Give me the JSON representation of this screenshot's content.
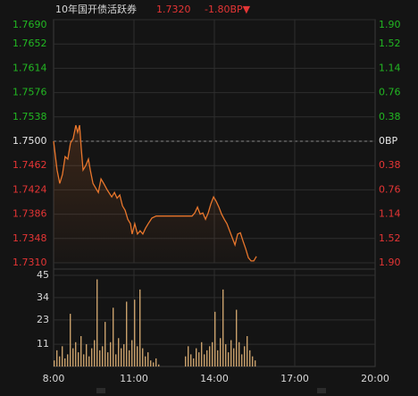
{
  "chart_data": [
    {
      "type": "line",
      "title": "10年国开债活跃券",
      "last_price": "1.7320",
      "change": "-1.80BP▼",
      "x": [
        8.0,
        8.13,
        8.23,
        8.33,
        8.43,
        8.53,
        8.63,
        8.73,
        8.83,
        8.9,
        8.97,
        9.03,
        9.1,
        9.2,
        9.3,
        9.37,
        9.47,
        9.57,
        9.67,
        9.77,
        9.87,
        10.0,
        10.17,
        10.27,
        10.37,
        10.47,
        10.57,
        10.67,
        10.77,
        10.87,
        10.93,
        11.03,
        11.13,
        11.23,
        11.33,
        11.43,
        11.53,
        11.67,
        11.83,
        13.17,
        13.27,
        13.37,
        13.47,
        13.57,
        13.67,
        13.77,
        13.87,
        13.97,
        14.07,
        14.17,
        14.27,
        14.37,
        14.47,
        14.57,
        14.67,
        14.77,
        14.87,
        14.97,
        15.07,
        15.17,
        15.27,
        15.37,
        15.47,
        15.57
      ],
      "series": [
        {
          "color": "#e8762c",
          "values": [
            1.75,
            1.7455,
            1.7434,
            1.7448,
            1.7476,
            1.7472,
            1.7497,
            1.7504,
            1.7525,
            1.7514,
            1.7525,
            1.749,
            1.7455,
            1.7462,
            1.7472,
            1.7455,
            1.7434,
            1.7427,
            1.742,
            1.7441,
            1.7434,
            1.7424,
            1.7413,
            1.742,
            1.7411,
            1.7416,
            1.7399,
            1.7392,
            1.7378,
            1.7371,
            1.7355,
            1.7371,
            1.7355,
            1.736,
            1.7355,
            1.7364,
            1.7371,
            1.738,
            1.7383,
            1.7383,
            1.7388,
            1.7397,
            1.7386,
            1.7388,
            1.7378,
            1.7388,
            1.7402,
            1.7413,
            1.7406,
            1.7397,
            1.7386,
            1.7378,
            1.7371,
            1.736,
            1.7349,
            1.7338,
            1.7355,
            1.7357,
            1.7344,
            1.7332,
            1.7318,
            1.7313,
            1.7313,
            1.732
          ]
        }
      ],
      "xlim": [
        8,
        20
      ],
      "ylim": [
        1.731,
        1.769
      ],
      "yticks": [
        {
          "value": 1.769,
          "label": "1.7690"
        },
        {
          "value": 1.7652,
          "label": "1.7652"
        },
        {
          "value": 1.7614,
          "label": "1.7614"
        },
        {
          "value": 1.7576,
          "label": "1.7576"
        },
        {
          "value": 1.7538,
          "label": "1.7538"
        },
        {
          "value": 1.75,
          "label": "1.7500"
        },
        {
          "value": 1.7462,
          "label": "1.7462"
        },
        {
          "value": 1.7424,
          "label": "1.7424"
        },
        {
          "value": 1.7386,
          "label": "1.7386"
        },
        {
          "value": 1.7348,
          "label": "1.7348"
        },
        {
          "value": 1.731,
          "label": "1.7310"
        }
      ],
      "y2lim": [
        -1.9,
        1.9
      ],
      "y2ticks": [
        {
          "value": 1.9,
          "label": "1.90"
        },
        {
          "value": 1.52,
          "label": "1.52"
        },
        {
          "value": 1.14,
          "label": "1.14"
        },
        {
          "value": 0.76,
          "label": "0.76"
        },
        {
          "value": 0.38,
          "label": "0.38"
        },
        {
          "value": 0,
          "label": "0BP"
        },
        {
          "value": -0.38,
          "label": "0.38"
        },
        {
          "value": -0.76,
          "label": "0.76"
        },
        {
          "value": -1.14,
          "label": "1.14"
        },
        {
          "value": -1.52,
          "label": "1.52"
        },
        {
          "value": -1.9,
          "label": "1.90"
        }
      ],
      "reference_line": 1.75,
      "up_color": "#22b822",
      "down_color": "#e53535",
      "flat_color": "#e6e6e6",
      "grid": true
    },
    {
      "type": "bar",
      "color": "#c9a06c",
      "x": [
        8.0,
        8.1,
        8.2,
        8.3,
        8.4,
        8.5,
        8.6,
        8.7,
        8.8,
        8.9,
        9.0,
        9.1,
        9.2,
        9.3,
        9.4,
        9.5,
        9.6,
        9.7,
        9.8,
        9.9,
        10.0,
        10.1,
        10.2,
        10.3,
        10.4,
        10.5,
        10.6,
        10.7,
        10.8,
        10.9,
        11.0,
        11.1,
        11.2,
        11.3,
        11.4,
        11.5,
        11.6,
        11.7,
        11.8,
        11.9,
        12.9,
        13.0,
        13.1,
        13.2,
        13.3,
        13.4,
        13.5,
        13.6,
        13.7,
        13.8,
        13.9,
        14.0,
        14.1,
        14.2,
        14.3,
        14.4,
        14.5,
        14.6,
        14.7,
        14.8,
        14.9,
        15.0,
        15.1,
        15.2,
        15.3,
        15.4,
        15.5
      ],
      "values": [
        3,
        8,
        5,
        10,
        4,
        6,
        26,
        9,
        12,
        7,
        15,
        6,
        11,
        5,
        9,
        13,
        43,
        8,
        10,
        22,
        7,
        12,
        29,
        6,
        14,
        9,
        11,
        32,
        8,
        13,
        33,
        10,
        38,
        9,
        5,
        7,
        3,
        2,
        4,
        1,
        5,
        10,
        6,
        4,
        9,
        7,
        12,
        6,
        8,
        10,
        12,
        27,
        8,
        14,
        38,
        11,
        7,
        13,
        9,
        28,
        12,
        6,
        10,
        15,
        8,
        5,
        3
      ],
      "xlim": [
        8,
        20
      ],
      "xticks": [
        {
          "value": 8,
          "label": "8:00"
        },
        {
          "value": 11,
          "label": "11:00"
        },
        {
          "value": 14,
          "label": "14:00"
        },
        {
          "value": 17,
          "label": "17:00"
        },
        {
          "value": 20,
          "label": "20:00"
        }
      ],
      "ylim": [
        0,
        45
      ],
      "yticks": [
        45,
        34,
        23,
        11
      ],
      "grid": true
    }
  ]
}
